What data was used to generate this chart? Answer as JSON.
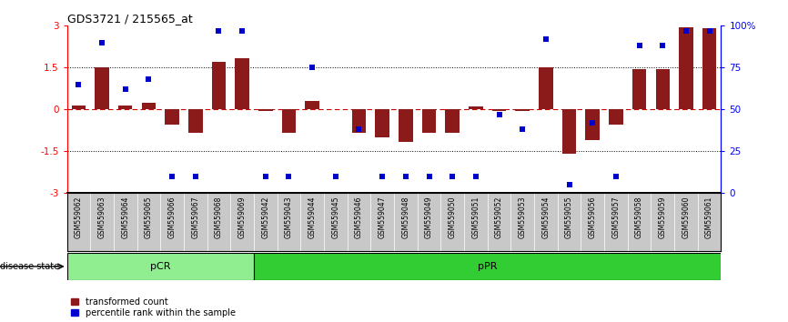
{
  "title": "GDS3721 / 215565_at",
  "samples": [
    "GSM559062",
    "GSM559063",
    "GSM559064",
    "GSM559065",
    "GSM559066",
    "GSM559067",
    "GSM559068",
    "GSM559069",
    "GSM559042",
    "GSM559043",
    "GSM559044",
    "GSM559045",
    "GSM559046",
    "GSM559047",
    "GSM559048",
    "GSM559049",
    "GSM559050",
    "GSM559051",
    "GSM559052",
    "GSM559053",
    "GSM559054",
    "GSM559055",
    "GSM559056",
    "GSM559057",
    "GSM559058",
    "GSM559059",
    "GSM559060",
    "GSM559061"
  ],
  "transformed_count": [
    0.15,
    1.5,
    0.15,
    0.25,
    -0.55,
    -0.85,
    1.7,
    1.85,
    -0.05,
    -0.85,
    0.3,
    0.0,
    -0.85,
    -1.0,
    -1.15,
    -0.85,
    -0.85,
    0.1,
    -0.05,
    -0.05,
    1.5,
    -1.6,
    -1.1,
    -0.55,
    1.45,
    1.45,
    2.95,
    2.9
  ],
  "percentile_rank": [
    65,
    90,
    62,
    68,
    10,
    10,
    97,
    97,
    10,
    10,
    75,
    10,
    38,
    10,
    10,
    10,
    10,
    10,
    47,
    38,
    92,
    5,
    42,
    10,
    88,
    88,
    97,
    97
  ],
  "pCR_count": 8,
  "pPR_count": 20,
  "bar_color": "#8B1A1A",
  "dot_color": "#0000CD",
  "zero_line_color": "#CC0000",
  "dotted_line_color": "#000000",
  "ylim": [
    -3,
    3
  ],
  "yticks": [
    -3,
    -1.5,
    0,
    1.5,
    3
  ],
  "yticklabels_left": [
    "-3",
    "-1.5",
    "0",
    "1.5",
    "3"
  ],
  "yticklabels_right": [
    "0",
    "25",
    "50",
    "75",
    "100%"
  ],
  "hlines": [
    1.5,
    -1.5
  ],
  "pCR_color": "#90EE90",
  "pPR_color": "#32CD32",
  "label_bar": "transformed count",
  "label_dot": "percentile rank within the sample",
  "disease_state_label": "disease state",
  "xticklabel_bg": "#C8C8C8"
}
